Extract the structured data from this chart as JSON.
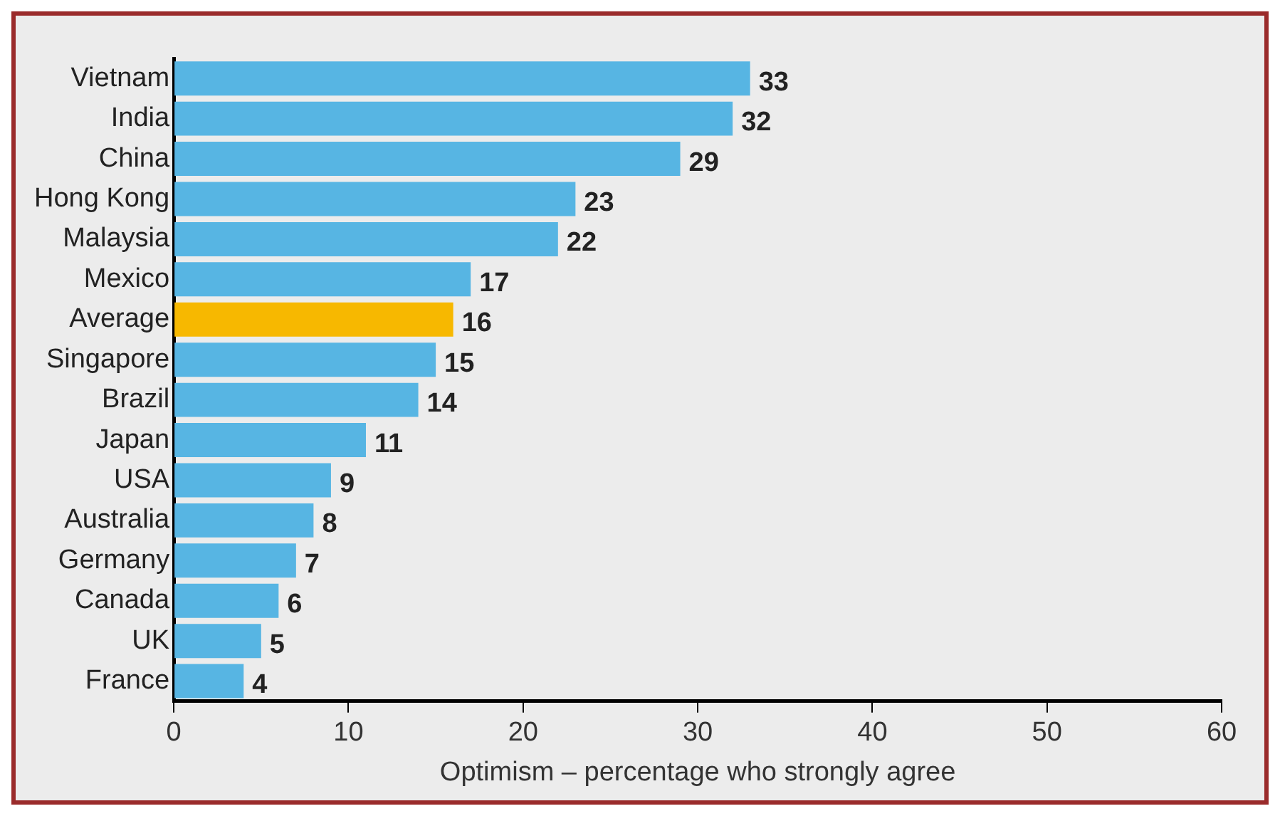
{
  "chart_data": {
    "type": "bar",
    "orientation": "horizontal",
    "xlabel": "Optimism – percentage who strongly agree",
    "categories": [
      "Vietnam",
      "India",
      "China",
      "Hong Kong",
      "Malaysia",
      "Mexico",
      "Average",
      "Singapore",
      "Brazil",
      "Japan",
      "USA",
      "Australia",
      "Germany",
      "Canada",
      "UK",
      "France"
    ],
    "values": [
      33,
      32,
      29,
      23,
      22,
      17,
      16,
      15,
      14,
      11,
      9,
      8,
      7,
      6,
      5,
      4
    ],
    "colors": [
      "#57b5e3",
      "#57b5e3",
      "#57b5e3",
      "#57b5e3",
      "#57b5e3",
      "#57b5e3",
      "#f7b800",
      "#57b5e3",
      "#57b5e3",
      "#57b5e3",
      "#57b5e3",
      "#57b5e3",
      "#57b5e3",
      "#57b5e3",
      "#57b5e3",
      "#57b5e3"
    ],
    "xlim": [
      0,
      60
    ],
    "xticks": [
      0,
      10,
      20,
      30,
      40,
      50,
      60
    ],
    "data_labels": true,
    "grid": false,
    "legend": false
  }
}
